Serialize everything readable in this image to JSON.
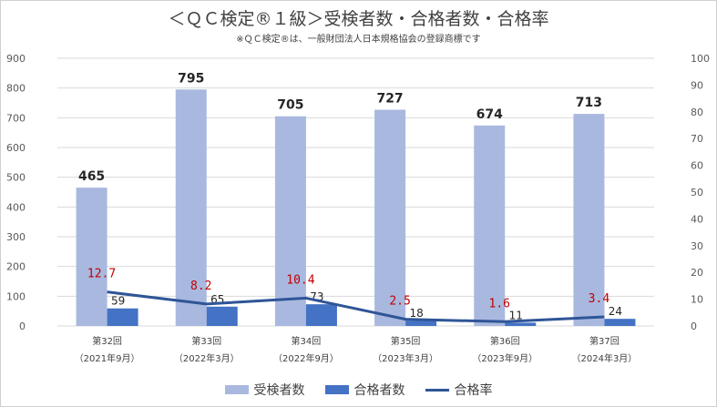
{
  "chart_data": {
    "type": "bar",
    "title": "＜ＱＣ検定®１級＞受検者数・合格者数・合格率",
    "subtitle": "※ＱＣ検定®は、一般財団法人日本規格協会の登録商標です",
    "categories": [
      {
        "line1": "第32回",
        "line2": "（2021年9月）"
      },
      {
        "line1": "第33回",
        "line2": "（2022年3月）"
      },
      {
        "line1": "第34回",
        "line2": "（2022年9月）"
      },
      {
        "line1": "第35回",
        "line2": "（2023年3月）"
      },
      {
        "line1": "第36回",
        "line2": "（2023年9月）"
      },
      {
        "line1": "第37回",
        "line2": "（2024年3月）"
      }
    ],
    "series": [
      {
        "name": "受検者数",
        "type": "bar",
        "axis": "left",
        "color": "#a9b8df",
        "values": [
          465,
          795,
          705,
          727,
          674,
          713
        ]
      },
      {
        "name": "合格者数",
        "type": "bar",
        "axis": "left",
        "color": "#4472c4",
        "values": [
          59,
          65,
          73,
          18,
          11,
          24
        ]
      },
      {
        "name": "合格率",
        "type": "line",
        "axis": "right",
        "color": "#2f5597",
        "values": [
          12.7,
          8.2,
          10.4,
          2.5,
          1.6,
          3.4
        ]
      }
    ],
    "rate_labels": [
      "12.7",
      "8.2",
      "10.4",
      "2.5",
      "1.6",
      "3.4"
    ],
    "ylim_left": [
      0,
      900
    ],
    "yticks_left": [
      0,
      100,
      200,
      300,
      400,
      500,
      600,
      700,
      800,
      900
    ],
    "ylim_right": [
      0,
      100
    ],
    "yticks_right": [
      0,
      10,
      20,
      30,
      40,
      50,
      60,
      70,
      80,
      90,
      100
    ],
    "grid": true,
    "legend_position": "bottom",
    "label_color_rate": "#c00000"
  }
}
